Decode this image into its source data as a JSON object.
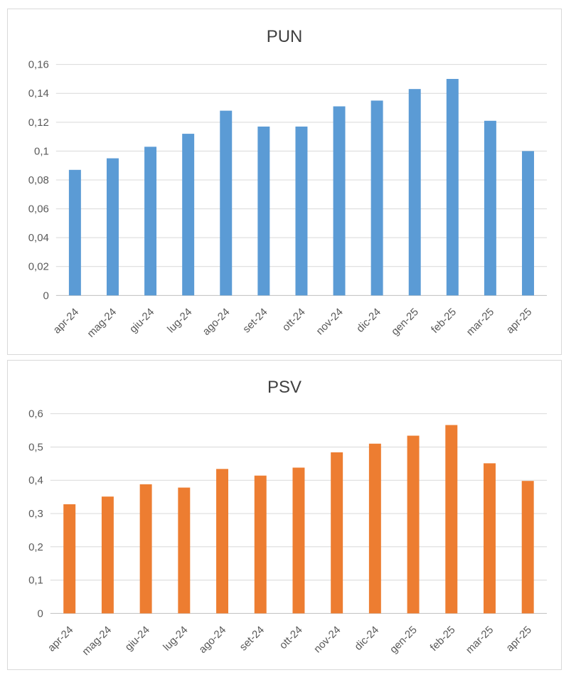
{
  "chart_data": [
    {
      "type": "bar",
      "title": "PUN",
      "xlabel": "",
      "ylabel": "",
      "categories": [
        "apr-24",
        "mag-24",
        "giu-24",
        "lug-24",
        "ago-24",
        "set-24",
        "ott-24",
        "nov-24",
        "dic-24",
        "gen-25",
        "feb-25",
        "mar-25",
        "apr-25"
      ],
      "values": [
        0.087,
        0.095,
        0.103,
        0.112,
        0.128,
        0.117,
        0.117,
        0.131,
        0.135,
        0.143,
        0.15,
        0.121,
        0.1
      ],
      "ylim": [
        0,
        0.16
      ],
      "yticks": [
        "0",
        "0,02",
        "0,04",
        "0,06",
        "0,08",
        "0,1",
        "0,12",
        "0,14",
        "0,16"
      ],
      "color": "#5b9bd5",
      "grid": true,
      "legend": "none"
    },
    {
      "type": "bar",
      "title": "PSV",
      "xlabel": "",
      "ylabel": "",
      "categories": [
        "apr-24",
        "mag-24",
        "giu-24",
        "lug-24",
        "ago-24",
        "set-24",
        "ott-24",
        "nov-24",
        "dic-24",
        "gen-25",
        "feb-25",
        "mar-25",
        "apr-25"
      ],
      "values": [
        0.328,
        0.351,
        0.388,
        0.378,
        0.434,
        0.414,
        0.438,
        0.484,
        0.51,
        0.534,
        0.566,
        0.451,
        0.398
      ],
      "ylim": [
        0,
        0.6
      ],
      "yticks": [
        "0",
        "0,1",
        "0,2",
        "0,3",
        "0,4",
        "0,5",
        "0,6"
      ],
      "color": "#ed7d31",
      "grid": true,
      "legend": "none"
    }
  ]
}
